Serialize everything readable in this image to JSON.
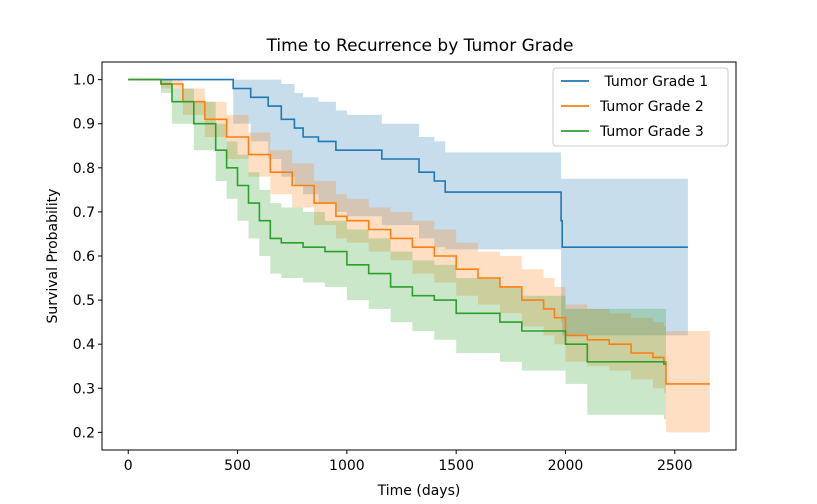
{
  "chart_data": {
    "type": "line",
    "title": "Time to Recurrence by Tumor Grade",
    "xlabel": "Time (days)",
    "ylabel": "Survival Probability",
    "xlim": [
      -120,
      2780
    ],
    "ylim": [
      0.16,
      1.04
    ],
    "xticks": [
      0,
      500,
      1000,
      1500,
      2000,
      2500
    ],
    "yticks": [
      0.2,
      0.3,
      0.4,
      0.5,
      0.6,
      0.7,
      0.8,
      0.9,
      1.0
    ],
    "ytick_labels": [
      "0.2",
      "0.3",
      "0.4",
      "0.5",
      "0.6",
      "0.7",
      "0.8",
      "0.9",
      "1.0"
    ],
    "grid": false,
    "legend_position": "top-right",
    "series": [
      {
        "name": " Tumor Grade 1",
        "color": "#1f77b4",
        "x": [
          0,
          480,
          480,
          560,
          640,
          700,
          760,
          800,
          870,
          950,
          1000,
          1160,
          1330,
          1400,
          1450,
          1550,
          1980,
          1985,
          2560
        ],
        "y": [
          1.0,
          1.0,
          0.98,
          0.96,
          0.94,
          0.91,
          0.89,
          0.87,
          0.86,
          0.84,
          0.84,
          0.82,
          0.79,
          0.77,
          0.745,
          0.745,
          0.68,
          0.62,
          0.62
        ],
        "ci_upper": [
          1.0,
          1.0,
          1.0,
          1.0,
          1.0,
          0.99,
          0.97,
          0.96,
          0.95,
          0.93,
          0.92,
          0.9,
          0.87,
          0.86,
          0.835,
          0.835,
          0.775,
          0.775,
          0.775
        ],
        "ci_lower": [
          1.0,
          1.0,
          0.9,
          0.86,
          0.82,
          0.78,
          0.76,
          0.74,
          0.72,
          0.7,
          0.69,
          0.67,
          0.64,
          0.62,
          0.615,
          0.615,
          0.45,
          0.42,
          0.42
        ]
      },
      {
        "name": "Tumor Grade 2",
        "color": "#ff7f0e",
        "x": [
          0,
          150,
          250,
          350,
          450,
          550,
          650,
          750,
          850,
          950,
          1000,
          1100,
          1200,
          1300,
          1400,
          1500,
          1600,
          1700,
          1800,
          1900,
          1950,
          2000,
          2100,
          2200,
          2300,
          2400,
          2450,
          2460,
          2660
        ],
        "y": [
          1.0,
          0.99,
          0.95,
          0.91,
          0.87,
          0.83,
          0.79,
          0.76,
          0.72,
          0.69,
          0.68,
          0.66,
          0.64,
          0.62,
          0.6,
          0.57,
          0.55,
          0.53,
          0.5,
          0.48,
          0.46,
          0.42,
          0.41,
          0.4,
          0.38,
          0.37,
          0.36,
          0.31,
          0.31
        ],
        "ci_upper": [
          1.0,
          1.0,
          0.98,
          0.95,
          0.92,
          0.88,
          0.84,
          0.81,
          0.77,
          0.74,
          0.73,
          0.71,
          0.7,
          0.68,
          0.66,
          0.63,
          0.61,
          0.6,
          0.57,
          0.55,
          0.53,
          0.49,
          0.48,
          0.47,
          0.46,
          0.45,
          0.44,
          0.43,
          0.43
        ],
        "ci_lower": [
          1.0,
          0.98,
          0.92,
          0.87,
          0.82,
          0.78,
          0.74,
          0.71,
          0.67,
          0.64,
          0.63,
          0.61,
          0.59,
          0.56,
          0.54,
          0.51,
          0.49,
          0.47,
          0.44,
          0.42,
          0.4,
          0.36,
          0.35,
          0.34,
          0.32,
          0.3,
          0.29,
          0.2,
          0.2
        ]
      },
      {
        "name": "Tumor Grade 3",
        "color": "#2ca02c",
        "x": [
          0,
          150,
          200,
          300,
          400,
          450,
          500,
          550,
          600,
          650,
          700,
          800,
          900,
          1000,
          1100,
          1200,
          1300,
          1400,
          1500,
          1700,
          1800,
          2000,
          2100,
          2200,
          2300,
          2450,
          2460
        ],
        "y": [
          1.0,
          0.99,
          0.95,
          0.9,
          0.84,
          0.8,
          0.76,
          0.72,
          0.68,
          0.64,
          0.63,
          0.62,
          0.61,
          0.58,
          0.56,
          0.53,
          0.51,
          0.5,
          0.47,
          0.45,
          0.43,
          0.4,
          0.36,
          0.36,
          0.36,
          0.355,
          0.355
        ],
        "ci_upper": [
          1.0,
          1.0,
          0.98,
          0.95,
          0.9,
          0.86,
          0.83,
          0.79,
          0.75,
          0.72,
          0.71,
          0.7,
          0.68,
          0.66,
          0.64,
          0.61,
          0.59,
          0.58,
          0.55,
          0.53,
          0.51,
          0.48,
          0.48,
          0.48,
          0.48,
          0.48,
          0.48
        ],
        "ci_lower": [
          1.0,
          0.97,
          0.9,
          0.84,
          0.77,
          0.73,
          0.68,
          0.64,
          0.6,
          0.56,
          0.55,
          0.54,
          0.53,
          0.5,
          0.48,
          0.45,
          0.43,
          0.41,
          0.38,
          0.36,
          0.34,
          0.31,
          0.24,
          0.24,
          0.24,
          0.23,
          0.23
        ]
      }
    ]
  }
}
